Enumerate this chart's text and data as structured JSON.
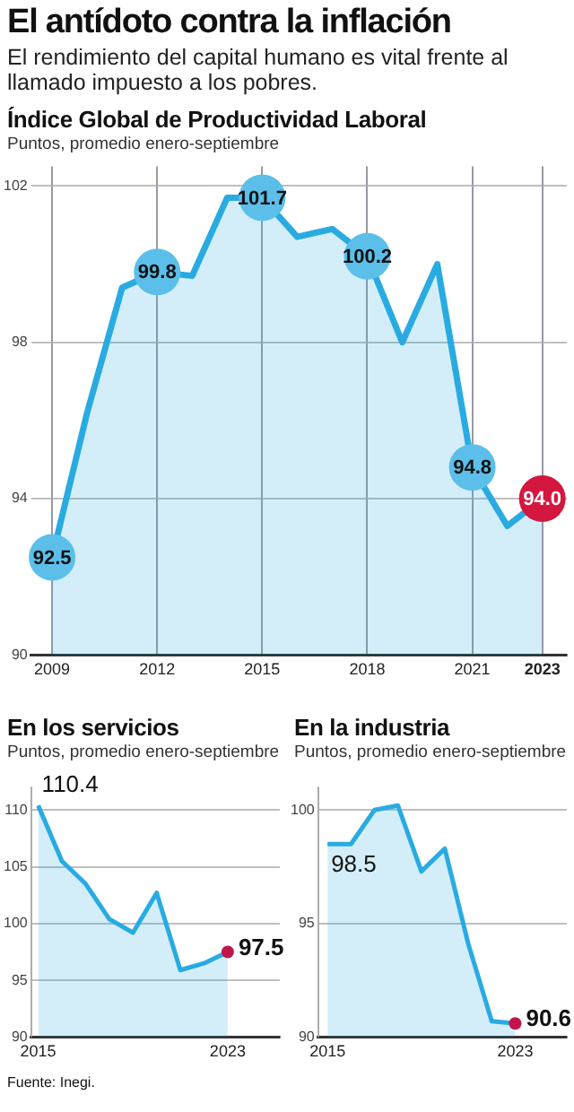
{
  "chart_data": [
    {
      "type": "area",
      "title": "Índice Global de Productividad Laboral",
      "subtitle": "Puntos, promedio enero-septiembre",
      "annotations": [
        "El antídoto contra la inflación",
        "El rendimiento del capital humano es vital frente al llamado impuesto a los pobres."
      ],
      "x": [
        2009,
        2010,
        2011,
        2012,
        2013,
        2014,
        2015,
        2016,
        2017,
        2018,
        2019,
        2020,
        2021,
        2022,
        2023
      ],
      "series": [
        {
          "color": "#29abe2",
          "values": [
            92.5,
            96.2,
            99.4,
            99.8,
            99.7,
            101.7,
            101.7,
            100.7,
            100.9,
            100.2,
            98.0,
            100.0,
            94.8,
            93.3,
            94.0
          ],
          "value_labels": [
            "92.5",
            null,
            null,
            "99.8",
            null,
            null,
            "101.7",
            null,
            null,
            "100.2",
            null,
            null,
            "94.8",
            null,
            "94.0"
          ],
          "colors": [
            "#5bbfea",
            null,
            null,
            "#5bbfea",
            null,
            null,
            "#5bbfea",
            null,
            null,
            "#5bbfea",
            null,
            null,
            "#5bbfea",
            null,
            "#d4173f"
          ]
        }
      ],
      "xlim": [
        2008.4,
        2023.7
      ],
      "xticks": [
        2009,
        2012,
        2015,
        2018,
        2021,
        2023
      ],
      "ylim": [
        90,
        102.5
      ],
      "yticks": [
        90,
        94,
        98,
        102
      ],
      "grid": true
    },
    {
      "type": "area",
      "title": "En los servicios",
      "subtitle": "Puntos, promedio enero-septiembre",
      "x": [
        2015,
        2016,
        2017,
        2018,
        2019,
        2020,
        2021,
        2022,
        2023
      ],
      "series": [
        {
          "color": "#29abe2",
          "values": [
            110.4,
            105.5,
            103.5,
            100.4,
            99.2,
            102.7,
            95.9,
            96.5,
            97.5
          ],
          "value_labels": [
            "110.4",
            null,
            null,
            null,
            null,
            null,
            null,
            null,
            "97.5"
          ],
          "colors": [
            null,
            null,
            null,
            null,
            null,
            null,
            null,
            null,
            "#c0174a"
          ]
        }
      ],
      "xlim": [
        2014.7,
        2025.2
      ],
      "xticks": [
        2015,
        2023
      ],
      "ylim": [
        90,
        112
      ],
      "yticks": [
        90,
        95,
        100,
        105,
        110
      ],
      "grid": "y",
      "annotations": [
        "Fuente: Inegi."
      ]
    },
    {
      "type": "area",
      "title": "En la industria",
      "subtitle": "Puntos, promedio enero-septiembre",
      "x": [
        2015,
        2016,
        2017,
        2018,
        2019,
        2020,
        2021,
        2022,
        2023
      ],
      "series": [
        {
          "color": "#29abe2",
          "values": [
            98.5,
            98.5,
            100.0,
            100.2,
            97.3,
            98.3,
            94.1,
            90.7,
            90.6
          ],
          "value_labels": [
            "98.5",
            null,
            null,
            null,
            null,
            null,
            null,
            null,
            "90.6"
          ],
          "colors": [
            null,
            null,
            null,
            null,
            null,
            null,
            null,
            null,
            "#c0174a"
          ]
        }
      ],
      "xlim": [
        2014.6,
        2025.2
      ],
      "xticks": [
        2015,
        2023
      ],
      "ylim": [
        90,
        101
      ],
      "yticks": [
        90,
        95,
        100
      ],
      "grid": "y"
    }
  ]
}
